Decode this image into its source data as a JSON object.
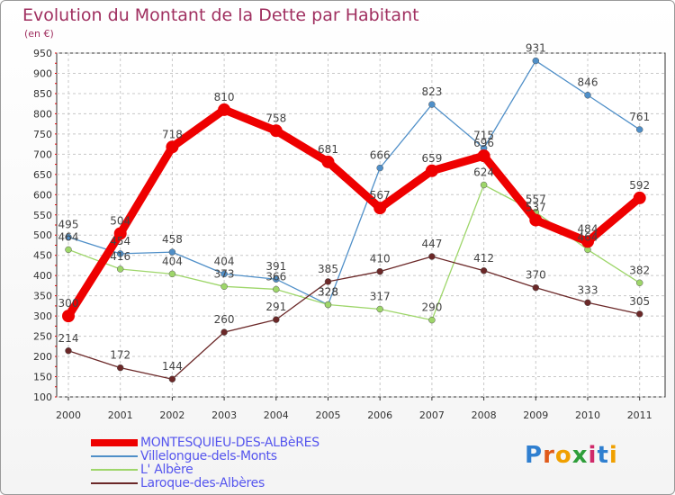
{
  "title": "Evolution du Montant de la Dette par Habitant",
  "unit_label": "(en €)",
  "logo": "Proxiti",
  "chart_data": {
    "type": "line",
    "title": "Evolution du Montant de la Dette par Habitant",
    "ylabel": "(en €)",
    "x": [
      "2000",
      "2001",
      "2002",
      "2003",
      "2004",
      "2005",
      "2006",
      "2007",
      "2008",
      "2009",
      "2010",
      "2011"
    ],
    "ylim": [
      100,
      950
    ],
    "yticks": [
      100,
      150,
      200,
      250,
      300,
      350,
      400,
      450,
      500,
      550,
      600,
      650,
      700,
      750,
      800,
      850,
      900,
      950
    ],
    "grid": true,
    "legend_position": "bottom",
    "series": [
      {
        "name": "MONTESQUIEU-DES-ALBèRES",
        "color": "#ee0000",
        "values": [
          300,
          504,
          718,
          810,
          758,
          681,
          567,
          659,
          696,
          537,
          484,
          592
        ]
      },
      {
        "name": "Villelongue-dels-Monts",
        "color": "#4f8fc8",
        "values": [
          495,
          454,
          458,
          404,
          391,
          328,
          666,
          823,
          715,
          931,
          846,
          761
        ]
      },
      {
        "name": "L' Albère",
        "color": "#9ed66a",
        "values": [
          464,
          416,
          404,
          373,
          366,
          328,
          317,
          290,
          624,
          557,
          464,
          382
        ]
      },
      {
        "name": "Laroque-des-Albères",
        "color": "#6b2828",
        "values": [
          214,
          172,
          144,
          260,
          291,
          385,
          410,
          447,
          412,
          370,
          333,
          305
        ]
      }
    ]
  }
}
